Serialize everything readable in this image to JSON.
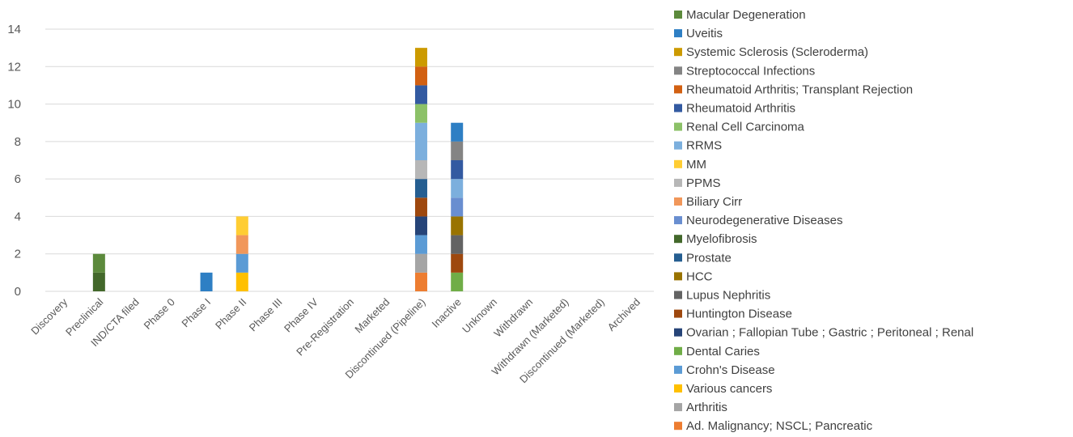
{
  "chart_data": {
    "type": "bar",
    "stacked": true,
    "title": "",
    "xlabel": "",
    "ylabel": "",
    "ylim": [
      0,
      14
    ],
    "y_ticks": [
      0,
      2,
      4,
      6,
      8,
      10,
      12,
      14
    ],
    "grid": true,
    "legend_position": "right",
    "categories": [
      "Discovery",
      "Preclinical",
      "IND/CTA filed",
      "Phase 0",
      "Phase I",
      "Phase II",
      "Phase III",
      "Phase IV",
      "Pre-Registration",
      "Marketed",
      "Discontinued (Pipeline)",
      "Inactive",
      "Unknown",
      "Withdrawn",
      "Withdrawn (Marketed)",
      "Discontinued (Marketed)",
      "Archived"
    ],
    "series": [
      {
        "name": "Ad. Malignancy; NSCL; Pancreatic",
        "color": "#ED7D31",
        "values": [
          0,
          0,
          0,
          0,
          0,
          0,
          0,
          0,
          0,
          0,
          1,
          0,
          0,
          0,
          0,
          0,
          0
        ]
      },
      {
        "name": "Arthritis",
        "color": "#A5A5A5",
        "values": [
          0,
          0,
          0,
          0,
          0,
          0,
          0,
          0,
          0,
          0,
          1,
          0,
          0,
          0,
          0,
          0,
          0
        ]
      },
      {
        "name": "Various cancers",
        "color": "#FFC000",
        "values": [
          0,
          0,
          0,
          0,
          0,
          1,
          0,
          0,
          0,
          0,
          0,
          0,
          0,
          0,
          0,
          0,
          0
        ]
      },
      {
        "name": "Crohn's Disease",
        "color": "#5B9BD5",
        "values": [
          0,
          0,
          0,
          0,
          0,
          1,
          0,
          0,
          0,
          0,
          1,
          0,
          0,
          0,
          0,
          0,
          0
        ]
      },
      {
        "name": "Dental Caries",
        "color": "#70AD47",
        "values": [
          0,
          0,
          0,
          0,
          0,
          0,
          0,
          0,
          0,
          0,
          0,
          1,
          0,
          0,
          0,
          0,
          0
        ]
      },
      {
        "name": " Ovarian ; Fallopian Tube ; Gastric ; Peritoneal ; Renal",
        "color": "#264478",
        "values": [
          0,
          0,
          0,
          0,
          0,
          0,
          0,
          0,
          0,
          0,
          1,
          0,
          0,
          0,
          0,
          0,
          0
        ]
      },
      {
        "name": "Huntington Disease",
        "color": "#9E480E",
        "values": [
          0,
          0,
          0,
          0,
          0,
          0,
          0,
          0,
          0,
          0,
          1,
          1,
          0,
          0,
          0,
          0,
          0
        ]
      },
      {
        "name": "Lupus Nephritis",
        "color": "#636363",
        "values": [
          0,
          0,
          0,
          0,
          0,
          0,
          0,
          0,
          0,
          0,
          0,
          1,
          0,
          0,
          0,
          0,
          0
        ]
      },
      {
        "name": "HCC",
        "color": "#997300",
        "values": [
          0,
          0,
          0,
          0,
          0,
          0,
          0,
          0,
          0,
          0,
          0,
          1,
          0,
          0,
          0,
          0,
          0
        ]
      },
      {
        "name": "Prostate",
        "color": "#255E91",
        "values": [
          0,
          0,
          0,
          0,
          0,
          0,
          0,
          0,
          0,
          0,
          1,
          0,
          0,
          0,
          0,
          0,
          0
        ]
      },
      {
        "name": "Myelofibrosis",
        "color": "#43682B",
        "values": [
          0,
          1,
          0,
          0,
          0,
          0,
          0,
          0,
          0,
          0,
          0,
          0,
          0,
          0,
          0,
          0,
          0
        ]
      },
      {
        "name": "Neurodegenerative Diseases",
        "color": "#698ED0",
        "values": [
          0,
          0,
          0,
          0,
          0,
          0,
          0,
          0,
          0,
          0,
          0,
          1,
          0,
          0,
          0,
          0,
          0
        ]
      },
      {
        "name": "Biliary Cirr",
        "color": "#F1975A",
        "values": [
          0,
          0,
          0,
          0,
          0,
          1,
          0,
          0,
          0,
          0,
          0,
          0,
          0,
          0,
          0,
          0,
          0
        ]
      },
      {
        "name": "PPMS",
        "color": "#B7B7B7",
        "values": [
          0,
          0,
          0,
          0,
          0,
          0,
          0,
          0,
          0,
          0,
          1,
          0,
          0,
          0,
          0,
          0,
          0
        ]
      },
      {
        "name": "MM",
        "color": "#FFCD33",
        "values": [
          0,
          0,
          0,
          0,
          0,
          1,
          0,
          0,
          0,
          0,
          0,
          0,
          0,
          0,
          0,
          0,
          0
        ]
      },
      {
        "name": "RRMS",
        "color": "#7CAFDD",
        "values": [
          0,
          0,
          0,
          0,
          0,
          0,
          0,
          0,
          0,
          0,
          2,
          1,
          0,
          0,
          0,
          0,
          0
        ]
      },
      {
        "name": "Renal Cell Carcinoma",
        "color": "#8CC168",
        "values": [
          0,
          0,
          0,
          0,
          0,
          0,
          0,
          0,
          0,
          0,
          1,
          0,
          0,
          0,
          0,
          0,
          0
        ]
      },
      {
        "name": "Rheumatoid Arthritis",
        "color": "#335AA1",
        "values": [
          0,
          0,
          0,
          0,
          0,
          0,
          0,
          0,
          0,
          0,
          1,
          1,
          0,
          0,
          0,
          0,
          0
        ]
      },
      {
        "name": "Rheumatoid Arthritis; Transplant Rejection",
        "color": "#D26012",
        "values": [
          0,
          0,
          0,
          0,
          0,
          0,
          0,
          0,
          0,
          0,
          1,
          0,
          0,
          0,
          0,
          0,
          0
        ]
      },
      {
        "name": "Streptococcal Infections",
        "color": "#848484",
        "values": [
          0,
          0,
          0,
          0,
          0,
          0,
          0,
          0,
          0,
          0,
          0,
          1,
          0,
          0,
          0,
          0,
          0
        ]
      },
      {
        "name": "Systemic Sclerosis (Scleroderma)",
        "color": "#CC9A00",
        "values": [
          0,
          0,
          0,
          0,
          0,
          0,
          0,
          0,
          0,
          0,
          1,
          0,
          0,
          0,
          0,
          0,
          0
        ]
      },
      {
        "name": "Uveitis",
        "color": "#2E7FC4",
        "values": [
          0,
          0,
          0,
          0,
          1,
          0,
          0,
          0,
          0,
          0,
          0,
          1,
          0,
          0,
          0,
          0,
          0
        ]
      },
      {
        "name": "Macular Degeneration",
        "color": "#5C8A3C",
        "values": [
          0,
          1,
          0,
          0,
          0,
          0,
          0,
          0,
          0,
          0,
          0,
          0,
          0,
          0,
          0,
          0,
          0
        ]
      }
    ]
  }
}
